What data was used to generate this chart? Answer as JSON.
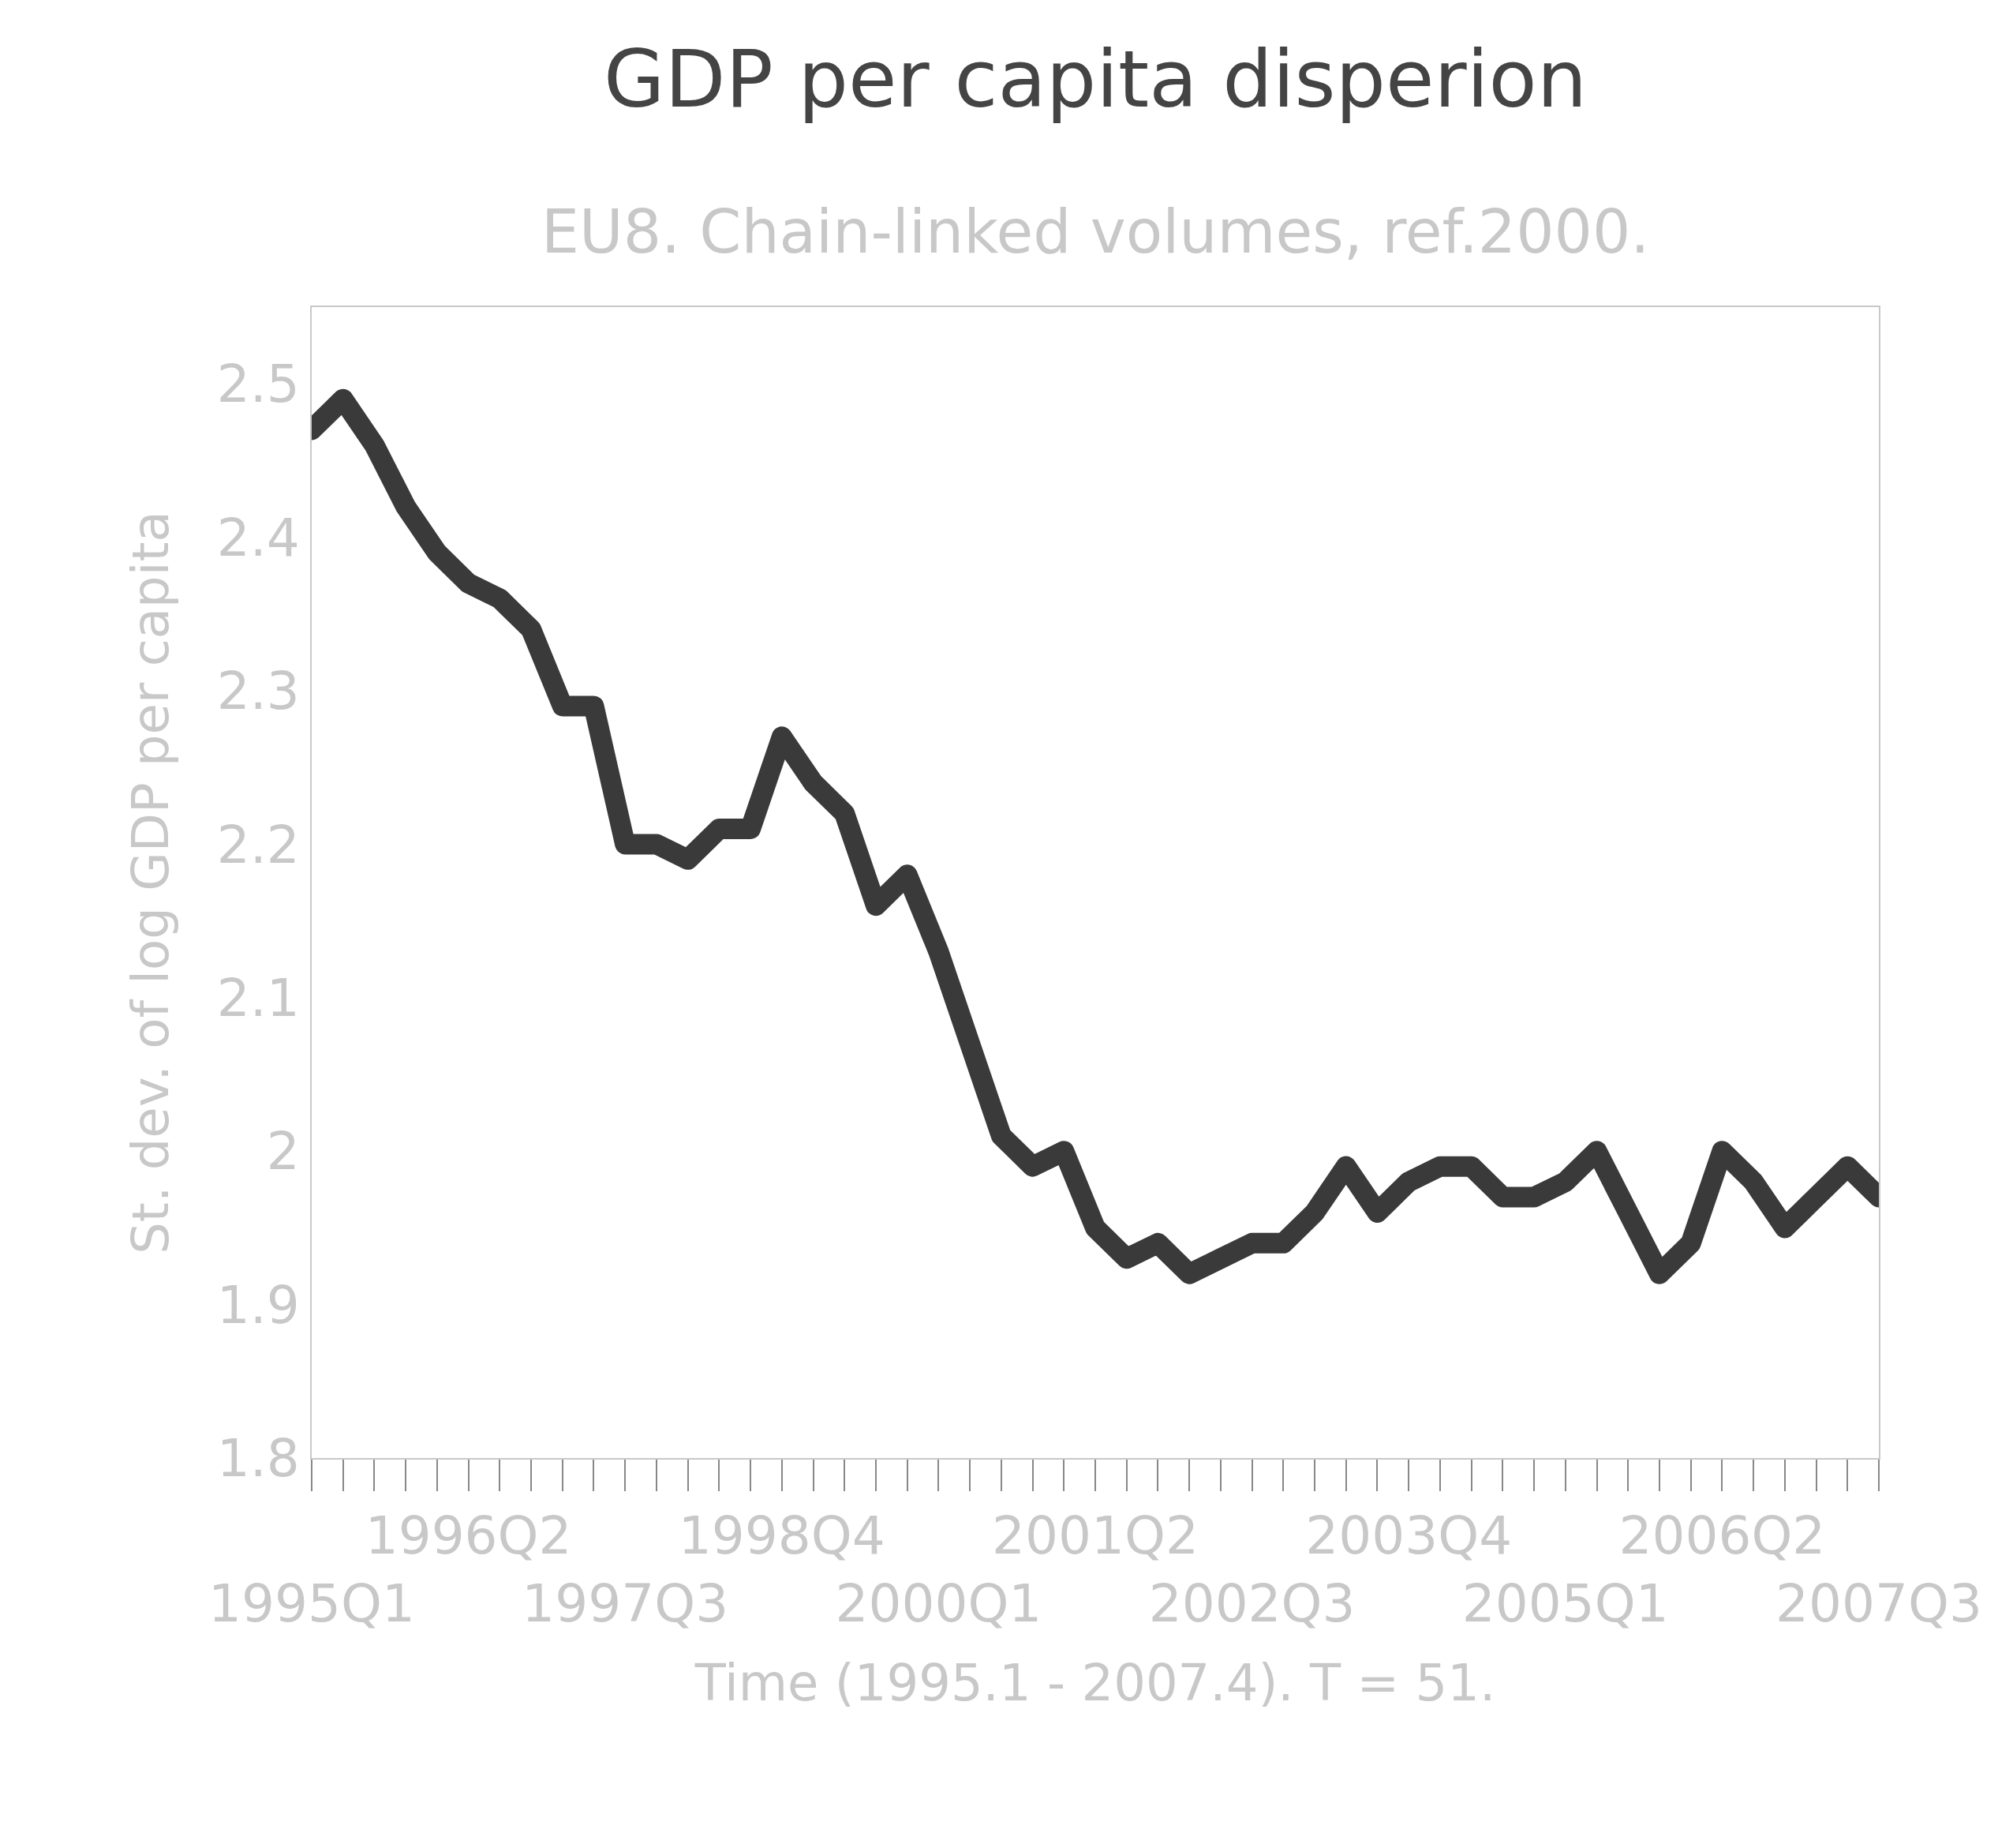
{
  "chart_data": {
    "type": "line",
    "title": "GDP per capita disperion",
    "subtitle": "EU8. Chain-linked volumes, ref.2000.",
    "xlabel": "Time (1995.1 - 2007.4). T = 51.",
    "ylabel": "St. dev. of log GDP per capita",
    "categories": [
      "1995Q1",
      null,
      null,
      null,
      null,
      "1996Q2",
      null,
      null,
      null,
      null,
      "1997Q3",
      null,
      null,
      null,
      null,
      "1998Q4",
      null,
      null,
      null,
      null,
      "2000Q1",
      null,
      null,
      null,
      null,
      "2001Q2",
      null,
      null,
      null,
      null,
      "2002Q3",
      null,
      null,
      null,
      null,
      "2003Q4",
      null,
      null,
      null,
      null,
      "2005Q1",
      null,
      null,
      null,
      null,
      "2006Q2",
      null,
      null,
      null,
      null,
      "2007Q3"
    ],
    "series": [
      {
        "color": "#3a3a3a",
        "values": [
          2.47,
          2.49,
          2.46,
          2.42,
          2.39,
          2.37,
          2.36,
          2.34,
          2.29,
          2.29,
          2.2,
          2.2,
          2.19,
          2.21,
          2.21,
          2.27,
          2.24,
          2.22,
          2.16,
          2.18,
          2.13,
          2.07,
          2.01,
          1.99,
          2.0,
          1.95,
          1.93,
          1.94,
          1.92,
          1.93,
          1.94,
          1.94,
          1.96,
          1.99,
          1.96,
          1.98,
          1.99,
          1.99,
          1.97,
          1.97,
          1.98,
          2.0,
          1.96,
          1.92,
          1.94,
          2.0,
          1.98,
          1.95,
          1.97,
          1.99,
          1.97
        ]
      }
    ],
    "ylim": [
      1.8,
      2.55
    ],
    "yticks": [
      1.8,
      1.9,
      2,
      2.1,
      2.2,
      2.3,
      2.4,
      2.5
    ],
    "line_style": "solid"
  }
}
